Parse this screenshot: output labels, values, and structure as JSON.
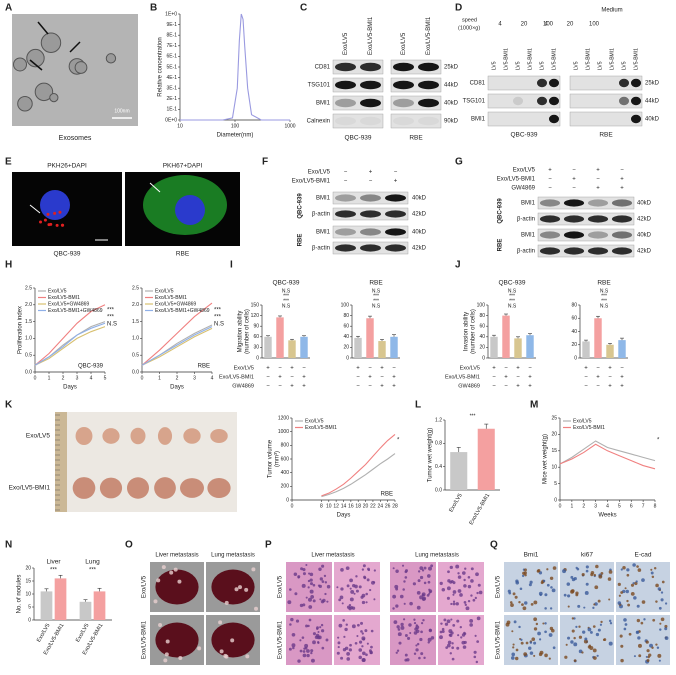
{
  "panel_letters": [
    "A",
    "B",
    "C",
    "D",
    "E",
    "F",
    "G",
    "H",
    "I",
    "J",
    "K",
    "L",
    "M",
    "N",
    "O",
    "P",
    "Q"
  ],
  "a": {
    "scale_bar": "100nm",
    "caption": "Exosomes"
  },
  "c": {
    "columns": [
      "Exo/LV5",
      "Exo/LV5-BMI1",
      "Exo/LV5",
      "Exo/LV5-BMI1"
    ],
    "proteins": [
      "CD81",
      "TSG101",
      "BMI1",
      "Calnexin"
    ],
    "sizes": [
      "25kD",
      "44kD",
      "40kD",
      "90kD"
    ],
    "cells": [
      "QBC-939",
      "RBE"
    ]
  },
  "d": {
    "speed_label": [
      "speed",
      "(1000×g)"
    ],
    "medium": "Medium",
    "speeds": [
      "4",
      "20",
      "100",
      "4",
      "20",
      "100"
    ],
    "columns": [
      "LV5",
      "LV5-BMI1",
      "LV5",
      "LV5-BMI1",
      "LV5",
      "LV5-BMI1",
      "LV5",
      "LV5-BMI1",
      "LV5",
      "LV5-BMI1",
      "LV5",
      "LV5-BMI1"
    ],
    "proteins": [
      "CD81",
      "TSG101",
      "BMI1"
    ],
    "sizes": [
      "25kD",
      "44kD",
      "40kD"
    ],
    "cells": [
      "QBC-939",
      "RBE"
    ]
  },
  "e": {
    "stains": [
      "PKH26+DAPI",
      "PKH67+DAPI"
    ],
    "cells": [
      "QBC-939",
      "RBE"
    ]
  },
  "f": {
    "conditions": [
      "Exo/LV5",
      "Exo/LV5-BMI1"
    ],
    "signs": [
      [
        "−",
        "+",
        "−"
      ],
      [
        "−",
        "−",
        "+"
      ]
    ],
    "proteins": [
      "BMI1",
      "β-actin",
      "BMI1",
      "β-actin"
    ],
    "sizes": [
      "40kD",
      "42kD",
      "40kD",
      "42kD"
    ],
    "cells": [
      "QBC-939",
      "RBE"
    ]
  },
  "g": {
    "proteins": [
      "BMI1",
      "β-actin",
      "BMI1",
      "β-actin"
    ],
    "sizes": [
      "40kD",
      "42kD",
      "40kD",
      "42kD"
    ],
    "cells": [
      "QBC-939",
      "RBE"
    ]
  },
  "conditions": {
    "labels": [
      "Exo/LV5",
      "Exo/LV5-BMI1",
      "GW4869"
    ],
    "signs": [
      [
        "+",
        "−",
        "+",
        "−"
      ],
      [
        "−",
        "+",
        "−",
        "+"
      ],
      [
        "−",
        "−",
        "+",
        "+"
      ]
    ]
  },
  "k": {
    "groups": [
      "Exo/LV5",
      "Exo/LV5-BMI1"
    ]
  },
  "o": {
    "columns": [
      "Liver metastasis",
      "Lung metastasis"
    ],
    "rows": [
      "Exo/LV5",
      "Exo/LV5-BMI1"
    ]
  },
  "p": {
    "columns": [
      "Liver metastasis",
      "Lung metastasis"
    ],
    "rows": [
      "Exo/LV5",
      "Exo/LV5-BMI1"
    ]
  },
  "q": {
    "columns": [
      "Bmi1",
      "ki67",
      "E-cad"
    ],
    "rows": [
      "Exo/LV5",
      "Exo/LV5-BMI1"
    ]
  },
  "chart_data": [
    {
      "type": "line",
      "xlabel": "Diameter(nm)",
      "ylabel": [
        "Relative concentration"
      ],
      "x": [
        10,
        60,
        90,
        110,
        120,
        130,
        140,
        150,
        170,
        200,
        300,
        1000
      ],
      "values": [
        0,
        0,
        0.02,
        0.3,
        0.75,
        1,
        0.95,
        0.7,
        0.3,
        0.05,
        0,
        0
      ],
      "color": "#9a9ae0",
      "xlog": true,
      "xlim": [
        10,
        1000
      ],
      "xticks": [
        10,
        100,
        1000
      ],
      "ylim": [
        0,
        1
      ],
      "yticks": [
        {
          "value": 0,
          "label": "0E+0"
        },
        {
          "value": 0.1,
          "label": "1E-1"
        },
        {
          "value": 0.2,
          "label": "2E-1"
        },
        {
          "value": 0.3,
          "label": "3E-1"
        },
        {
          "value": 0.4,
          "label": "4E-1"
        },
        {
          "value": 0.5,
          "label": "5E-1"
        },
        {
          "value": 0.6,
          "label": "6E-1"
        },
        {
          "value": 0.7,
          "label": "7E-1"
        },
        {
          "value": 0.8,
          "label": "8E-1"
        },
        {
          "value": 0.9,
          "label": "9E-1"
        },
        {
          "value": 1,
          "label": "1E+0"
        }
      ]
    },
    {
      "type": "line",
      "title": "QBC-939",
      "xlabel": "Days",
      "ylabel": [
        "Proliferation index"
      ],
      "x": [
        0,
        1,
        2,
        3,
        4,
        5
      ],
      "xlim": [
        0,
        5
      ],
      "xticks": [
        0,
        1,
        2,
        3,
        4,
        5
      ],
      "ylim": [
        0,
        2.5
      ],
      "yticks": [
        {
          "value": 0,
          "label": "0.0"
        },
        0.5,
        {
          "value": 1,
          "label": "1.0"
        },
        1.5,
        {
          "value": 2,
          "label": "2.0"
        },
        2.5
      ],
      "legend": "upper left",
      "annotations": [
        "***",
        "***",
        "N.S"
      ],
      "series": [
        {
          "name": "Exo/LV5",
          "color": "#b0b0b0",
          "values": [
            0.2,
            0.45,
            0.8,
            1.1,
            1.35,
            1.5
          ]
        },
        {
          "name": "Exo/LV5-BMI1",
          "color": "#f08080",
          "values": [
            0.2,
            0.55,
            1.0,
            1.45,
            1.8,
            2.0
          ]
        },
        {
          "name": "Exo/LV5+GW4869",
          "color": "#d8c070",
          "values": [
            0.2,
            0.4,
            0.7,
            1.0,
            1.2,
            1.35
          ]
        },
        {
          "name": "Exo/LV5-BMI1+GW4869",
          "color": "#8fb0e8",
          "values": [
            0.2,
            0.45,
            0.75,
            1.1,
            1.3,
            1.45
          ]
        }
      ]
    },
    {
      "type": "line",
      "title": "RBE",
      "xlabel": "Days",
      "x": [
        0,
        1,
        2,
        3,
        4
      ],
      "xlim": [
        0,
        4
      ],
      "xticks": [
        0,
        1,
        2,
        3,
        4
      ],
      "ylim": [
        0,
        2.5
      ],
      "yticks": [
        {
          "value": 0,
          "label": "0.0"
        },
        0.5,
        {
          "value": 1,
          "label": "1.0"
        },
        1.5,
        {
          "value": 2,
          "label": "2.0"
        },
        2.5
      ],
      "legend": "upper left",
      "annotations": [
        "***",
        "***",
        "N.S"
      ],
      "series": [
        {
          "name": "Exo/LV5",
          "color": "#b0b0b0",
          "values": [
            0.2,
            0.5,
            0.85,
            1.15,
            1.4
          ]
        },
        {
          "name": "Exo/LV5-BMI1",
          "color": "#f08080",
          "values": [
            0.2,
            0.65,
            1.15,
            1.65,
            2.05
          ]
        },
        {
          "name": "Exo/LV5+GW4869",
          "color": "#d8c070",
          "values": [
            0.2,
            0.45,
            0.75,
            1.05,
            1.3
          ]
        },
        {
          "name": "Exo/LV5-BMI1+GW4869",
          "color": "#8fb0e8",
          "values": [
            0.2,
            0.5,
            0.8,
            1.1,
            1.35
          ]
        }
      ]
    },
    {
      "type": "bar",
      "title": "QBC-939",
      "ylabel": [
        "Migration ability",
        "(number of cells)"
      ],
      "values": [
        60,
        115,
        50,
        60
      ],
      "errors": [
        3,
        4,
        3,
        3
      ],
      "colors": [
        "#c8c8c8",
        "#f4a0a0",
        "#d8c690",
        "#8fb8e8"
      ],
      "ylim": [
        0,
        150
      ],
      "yticks": [
        0,
        30,
        60,
        90,
        120,
        150
      ],
      "annotations": [
        "N.S",
        "***",
        "***",
        "N.S"
      ]
    },
    {
      "type": "bar",
      "title": "RBE",
      "values": [
        38,
        75,
        32,
        40
      ],
      "errors": [
        3,
        4,
        3,
        4
      ],
      "colors": [
        "#c8c8c8",
        "#f4a0a0",
        "#d8c690",
        "#8fb8e8"
      ],
      "ylim": [
        0,
        100
      ],
      "yticks": [
        0,
        20,
        40,
        60,
        80,
        100
      ],
      "annotations": [
        "N.S",
        "***",
        "***",
        "N.S"
      ]
    },
    {
      "type": "bar",
      "title": "QBC-939",
      "ylabel": [
        "Invasion ability",
        "(number of cells)"
      ],
      "values": [
        40,
        80,
        37,
        43
      ],
      "errors": [
        3,
        3,
        3,
        3
      ],
      "colors": [
        "#c8c8c8",
        "#f4a0a0",
        "#d8c690",
        "#8fb8e8"
      ],
      "ylim": [
        0,
        100
      ],
      "yticks": [
        0,
        20,
        40,
        60,
        80,
        100
      ],
      "annotations": [
        "N.S",
        "***",
        "***",
        "N.S"
      ]
    },
    {
      "type": "bar",
      "title": "RBE",
      "values": [
        25,
        60,
        20,
        27
      ],
      "errors": [
        2,
        3,
        2,
        3
      ],
      "colors": [
        "#c8c8c8",
        "#f4a0a0",
        "#d8c690",
        "#8fb8e8"
      ],
      "ylim": [
        0,
        80
      ],
      "yticks": [
        0,
        20,
        40,
        60,
        80
      ],
      "annotations": [
        "N.S",
        "***",
        "***",
        "N.S"
      ]
    },
    {
      "type": "line",
      "title": "RBE",
      "xlabel": "Days",
      "ylabel": [
        "Tumor volume",
        "(mm³)"
      ],
      "x": [
        8,
        10,
        12,
        14,
        16,
        18,
        20,
        22,
        24,
        26,
        28
      ],
      "xlim": [
        0,
        28
      ],
      "xticks": [
        0,
        8,
        10,
        12,
        14,
        16,
        18,
        20,
        22,
        24,
        26,
        28
      ],
      "ylim": [
        0,
        1200
      ],
      "yticks": [
        0,
        200,
        400,
        600,
        800,
        1000,
        1200
      ],
      "legend": "upper left",
      "annotations": [
        "*"
      ],
      "series": [
        {
          "name": "Exo/LV5",
          "color": "#b0b0b0",
          "values": [
            50,
            80,
            120,
            170,
            230,
            300,
            370,
            450,
            530,
            600,
            680
          ]
        },
        {
          "name": "Exo/LV5-BMI1",
          "color": "#f08080",
          "values": [
            60,
            100,
            160,
            230,
            320,
            420,
            520,
            640,
            760,
            870,
            960
          ]
        }
      ]
    },
    {
      "type": "bar",
      "ylabel": [
        "Tumor wet weight(g)"
      ],
      "categories": [
        "Exo/LV5",
        "Exo/LV5-BMI1"
      ],
      "values": [
        0.65,
        1.05
      ],
      "errors": [
        0.08,
        0.08
      ],
      "colors": [
        "#c8c8c8",
        "#f4a0a0"
      ],
      "ylim": [
        0,
        1.2
      ],
      "yticks": [
        {
          "value": 0,
          "label": "0.0"
        },
        0.4,
        0.8,
        1.2
      ],
      "annotations": [
        "***"
      ]
    },
    {
      "type": "line",
      "xlabel": "Weeks",
      "ylabel": [
        "Mice wet weight(g)"
      ],
      "x": [
        0,
        1,
        2,
        3,
        4,
        5,
        6,
        7,
        8
      ],
      "xlim": [
        0,
        8
      ],
      "xticks": [
        0,
        1,
        2,
        3,
        4,
        5,
        6,
        7,
        8
      ],
      "ylim": [
        0,
        25
      ],
      "yticks": [
        0,
        5,
        10,
        15,
        20,
        25
      ],
      "legend": "upper left",
      "annotations": [
        "*"
      ],
      "series": [
        {
          "name": "Exo/LV5",
          "color": "#b0b0b0",
          "values": [
            11,
            13,
            15.5,
            18,
            16,
            15,
            14,
            13,
            12
          ]
        },
        {
          "name": "Exo/LV5-BMI1",
          "color": "#f08080",
          "values": [
            11,
            12.5,
            14.5,
            17,
            15,
            13.5,
            12,
            10.5,
            9.5
          ]
        }
      ]
    },
    {
      "type": "bar",
      "ylabel": [
        "No. of nodules"
      ],
      "categories": [
        "Liver",
        "Lung"
      ],
      "ylim": [
        0,
        20
      ],
      "yticks": [
        0,
        5,
        10,
        15,
        20
      ],
      "annotations": [
        "***",
        "***"
      ],
      "series": [
        {
          "name": "Exo/LV5",
          "color": "#c8c8c8",
          "values": [
            11,
            7
          ],
          "errors": [
            1,
            0.8
          ]
        },
        {
          "name": "Exo/LV5-BMI1",
          "color": "#f4a0a0",
          "values": [
            16,
            11
          ],
          "errors": [
            1.2,
            1.2
          ]
        }
      ]
    }
  ]
}
